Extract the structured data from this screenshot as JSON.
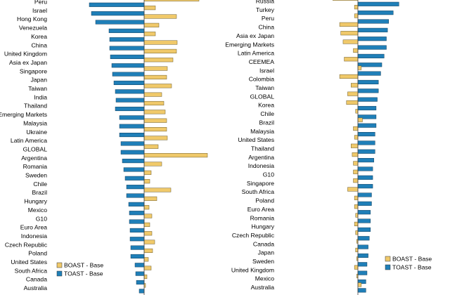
{
  "chart_data": [
    {
      "type": "bar",
      "orientation": "horizontal",
      "categories": [
        "Peru",
        "Israel",
        "Hong Kong",
        "Venezuela",
        "Korea",
        "China",
        "United Kingdom",
        "Asia ex Japan",
        "Singapore",
        "Japan",
        "Taiwan",
        "India",
        "Thailand",
        "Emerging Markets",
        "Malaysia",
        "Ukraine",
        "Latin America",
        "GLOBAL",
        "Argentina",
        "Romania",
        "Sweden",
        "Chile",
        "Brazil",
        "Hungary",
        "Mexico",
        "G10",
        "Euro Area",
        "Indonesia",
        "Czech Republic",
        "Poland",
        "United States",
        "South Africa",
        "Canada",
        "Australia"
      ],
      "series": [
        {
          "name": "BOAST - Base",
          "color": "#F0C96A",
          "values": [
            78,
            16,
            46,
            21,
            16,
            47,
            46,
            41,
            33,
            32,
            39,
            25,
            28,
            30,
            32,
            32,
            33,
            20,
            90,
            25,
            10,
            8,
            38,
            18,
            7,
            11,
            8,
            11,
            15,
            12,
            6,
            10,
            4,
            2
          ]
        },
        {
          "name": "TOAST - Base",
          "color": "#1F7FB8",
          "values": [
            -78,
            -75,
            -69,
            -50,
            -49,
            -49,
            -48,
            -46,
            -45,
            -43,
            -41,
            -40,
            -41,
            -35,
            -35,
            -35,
            -33,
            -33,
            -31,
            -29,
            -27,
            -25,
            -25,
            -22,
            -21,
            -21,
            -20,
            -20,
            -19,
            -19,
            -13,
            -12,
            -11,
            -7
          ]
        }
      ],
      "legend": "bottom-right"
    },
    {
      "type": "bar",
      "orientation": "horizontal",
      "categories": [
        "Russia",
        "Turkey",
        "Peru",
        "China",
        "Asia ex Japan",
        "Emerging Markets",
        "Latin America",
        "CEEMEA",
        "Israel",
        "Colombia",
        "Taiwan",
        "GLOBAL",
        "Korea",
        "Chile",
        "Brazil",
        "Malaysia",
        "United States",
        "Thailand",
        "Argentina",
        "Indonesia",
        "G10",
        "Singapore",
        "South Africa",
        "Poland",
        "Euro Area",
        "Romania",
        "Hungary",
        "Czech Republic",
        "Canada",
        "Japan",
        "Sweden",
        "United Kingdom",
        "Mexico",
        "Australia"
      ],
      "series": [
        {
          "name": "BOAST - Base",
          "color": "#F0C96A",
          "values": [
            -22,
            -3,
            -3,
            -16,
            -15,
            -13,
            -4,
            -12,
            3,
            -16,
            -6,
            -9,
            -10,
            -2,
            4,
            -4,
            -3,
            -6,
            -5,
            -4,
            -4,
            -4,
            -9,
            -3,
            -3,
            -2,
            -3,
            -2,
            -1,
            -2,
            -1,
            -3,
            -1,
            3
          ]
        },
        {
          "name": "TOAST - Base",
          "color": "#1F7FB8",
          "values": [
            36,
            31,
            27,
            26,
            25,
            25,
            23,
            21,
            20,
            18,
            18,
            17,
            16,
            16,
            16,
            15,
            15,
            15,
            14,
            13,
            13,
            13,
            12,
            12,
            11,
            11,
            11,
            10,
            9,
            9,
            8,
            8,
            7,
            7
          ]
        }
      ],
      "legend": "bottom-right"
    }
  ]
}
